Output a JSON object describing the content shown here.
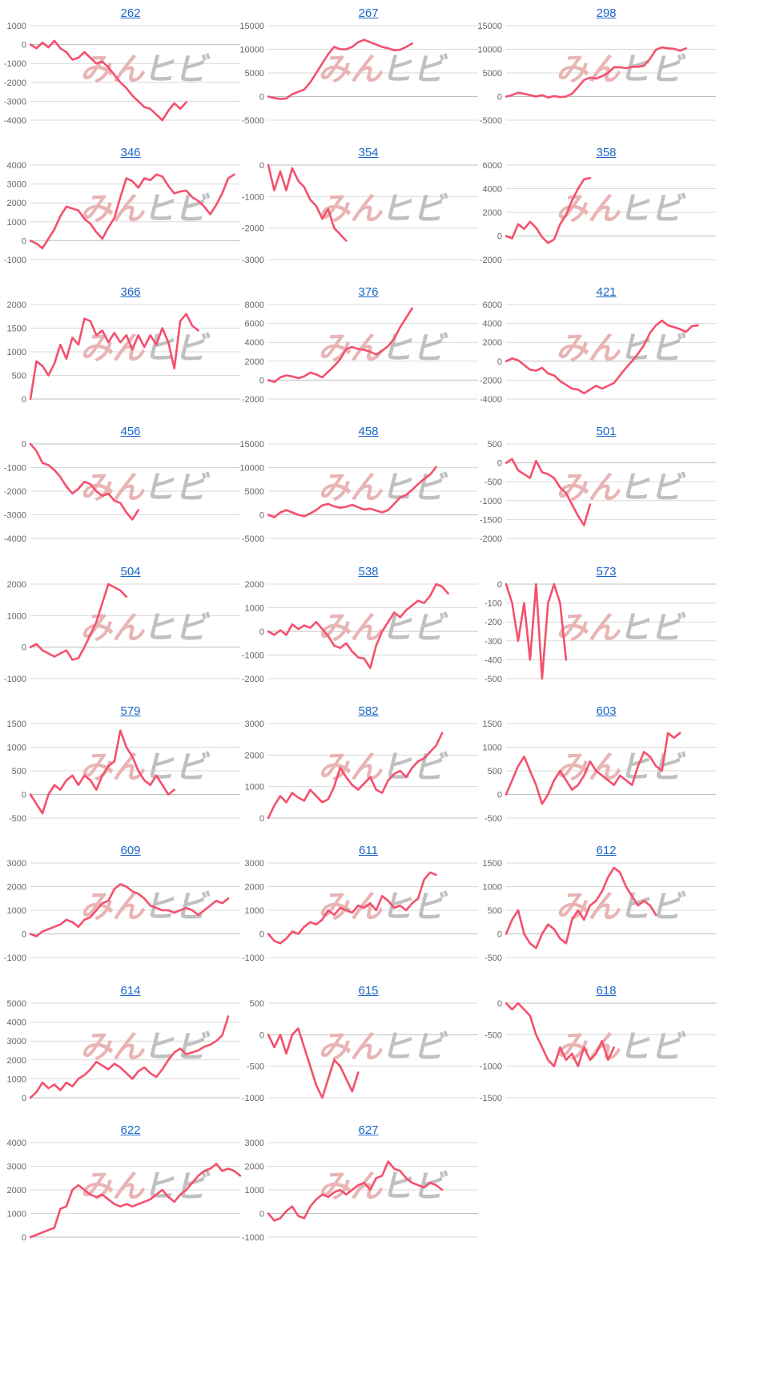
{
  "page": {
    "background": "#ffffff"
  },
  "style": {
    "line_color": "#f4506d",
    "link_color": "#1a66c8",
    "grid_color": "#d9d9d9",
    "axis_color": "#bfbfbf",
    "tick_color": "#666666"
  },
  "watermark": {
    "text_left": "みん",
    "text_right": "ヒビ",
    "color_left": "#e8b0b0",
    "color_right": "#bdbdbd"
  },
  "chart_data": [
    {
      "type": "line",
      "title": "262",
      "ylim": [
        -4000,
        1000
      ],
      "yticks": [
        "1000",
        "0",
        "-1000",
        "-2000",
        "-3000",
        "-4000"
      ],
      "values": [
        0,
        -200,
        100,
        -150,
        200,
        -200,
        -400,
        -800,
        -700,
        -400,
        -700,
        -1000,
        -900,
        -1200,
        -1600,
        -2000,
        -2300,
        -2700,
        -3000,
        -3300,
        -3400,
        -3700,
        -4000,
        -3500,
        -3100,
        -3400,
        -3050
      ]
    },
    {
      "type": "line",
      "title": "267",
      "ylim": [
        -5000,
        15000
      ],
      "yticks": [
        "15000",
        "10000",
        "5000",
        "0",
        "-5000"
      ],
      "values": [
        0,
        -300,
        -500,
        -400,
        500,
        1000,
        1500,
        3000,
        5000,
        7000,
        9000,
        10500,
        10000,
        10000,
        10500,
        11500,
        12000,
        11500,
        11000,
        10500,
        10200,
        9800,
        9900,
        10500,
        11200
      ]
    },
    {
      "type": "line",
      "title": "298",
      "ylim": [
        -5000,
        15000
      ],
      "yticks": [
        "15000",
        "10000",
        "5000",
        "0",
        "-5000"
      ],
      "values": [
        0,
        300,
        800,
        600,
        300,
        0,
        300,
        -200,
        100,
        -100,
        0,
        600,
        2000,
        3500,
        4000,
        3800,
        4300,
        5000,
        6200,
        6200,
        6000,
        6300,
        6300,
        6500,
        8000,
        9900,
        10400,
        10200,
        10100,
        9700,
        10200
      ]
    },
    {
      "type": "line",
      "title": "346",
      "ylim": [
        -1000,
        4000
      ],
      "yticks": [
        "4000",
        "3000",
        "2000",
        "1000",
        "0",
        "-1000"
      ],
      "values": [
        0,
        -150,
        -400,
        100,
        600,
        1300,
        1800,
        1700,
        1600,
        1150,
        900,
        450,
        100,
        700,
        1200,
        2300,
        3300,
        3150,
        2800,
        3300,
        3200,
        3500,
        3400,
        2900,
        2500,
        2600,
        2650,
        2300,
        2100,
        1800,
        1400,
        1900,
        2500,
        3300,
        3500
      ]
    },
    {
      "type": "line",
      "title": "354",
      "ylim": [
        -3000,
        0
      ],
      "yticks": [
        "0",
        "-1000",
        "-2000",
        "-3000"
      ],
      "values": [
        0,
        -800,
        -200,
        -800,
        -100,
        -500,
        -700,
        -1100,
        -1300,
        -1700,
        -1400,
        -2000,
        -2200,
        -2400
      ]
    },
    {
      "type": "line",
      "title": "358",
      "ylim": [
        -2000,
        6000
      ],
      "yticks": [
        "6000",
        "4000",
        "2000",
        "0",
        "-2000"
      ],
      "values": [
        0,
        -200,
        1000,
        600,
        1200,
        700,
        -100,
        -600,
        -300,
        1000,
        1800,
        3000,
        4000,
        4800,
        4900
      ]
    },
    {
      "type": "line",
      "title": "366",
      "ylim": [
        0,
        2000
      ],
      "yticks": [
        "2000",
        "1500",
        "1000",
        "500",
        "0"
      ],
      "values": [
        0,
        800,
        700,
        500,
        750,
        1150,
        850,
        1300,
        1150,
        1700,
        1650,
        1350,
        1450,
        1200,
        1400,
        1200,
        1350,
        1050,
        1350,
        1100,
        1350,
        1150,
        1500,
        1200,
        650,
        1650,
        1800,
        1550,
        1450
      ]
    },
    {
      "type": "line",
      "title": "376",
      "ylim": [
        -2000,
        8000
      ],
      "yticks": [
        "8000",
        "6000",
        "4000",
        "2000",
        "0",
        "-2000"
      ],
      "values": [
        0,
        -200,
        300,
        500,
        400,
        200,
        400,
        800,
        600,
        300,
        900,
        1500,
        2200,
        3300,
        3500,
        3300,
        3200,
        3000,
        2700,
        3100,
        3600,
        4400,
        5600,
        6600,
        7600
      ]
    },
    {
      "type": "line",
      "title": "421",
      "ylim": [
        -4000,
        6000
      ],
      "yticks": [
        "6000",
        "4000",
        "2000",
        "0",
        "-2000",
        "-4000"
      ],
      "values": [
        0,
        300,
        100,
        -400,
        -900,
        -1000,
        -700,
        -1300,
        -1500,
        -2100,
        -2500,
        -2900,
        -3000,
        -3400,
        -3000,
        -2600,
        -2900,
        -2600,
        -2300,
        -1500,
        -700,
        0,
        800,
        1700,
        3000,
        3800,
        4300,
        3800,
        3600,
        3400,
        3100,
        3700,
        3800
      ]
    },
    {
      "type": "line",
      "title": "456",
      "ylim": [
        -4000,
        0
      ],
      "yticks": [
        "0",
        "-1000",
        "-2000",
        "-3000",
        "-4000"
      ],
      "values": [
        0,
        -300,
        -800,
        -900,
        -1100,
        -1400,
        -1800,
        -2100,
        -1900,
        -1600,
        -1700,
        -2000,
        -2200,
        -2100,
        -2400,
        -2500,
        -2900,
        -3200,
        -2800
      ]
    },
    {
      "type": "line",
      "title": "458",
      "ylim": [
        -5000,
        15000
      ],
      "yticks": [
        "15000",
        "10000",
        "5000",
        "0",
        "-5000"
      ],
      "values": [
        0,
        -500,
        500,
        1000,
        500,
        0,
        -300,
        300,
        1000,
        2000,
        2300,
        1800,
        1500,
        1700,
        2100,
        1600,
        1100,
        1300,
        900,
        500,
        1000,
        2300,
        3700,
        4200,
        5300,
        6500,
        7600,
        8500,
        10100
      ]
    },
    {
      "type": "line",
      "title": "501",
      "ylim": [
        -2000,
        500
      ],
      "yticks": [
        "500",
        "0",
        "-500",
        "-1000",
        "-1500",
        "-2000"
      ],
      "values": [
        0,
        100,
        -200,
        -300,
        -400,
        50,
        -250,
        -300,
        -400,
        -650,
        -800,
        -1100,
        -1400,
        -1650,
        -1100
      ]
    },
    {
      "type": "line",
      "title": "504",
      "ylim": [
        -1000,
        2000
      ],
      "yticks": [
        "2000",
        "1000",
        "0",
        "-1000"
      ],
      "values": [
        0,
        100,
        -100,
        -200,
        -300,
        -200,
        -100,
        -400,
        -350,
        0,
        400,
        800,
        1400,
        2000,
        1900,
        1800,
        1600
      ]
    },
    {
      "type": "line",
      "title": "538",
      "ylim": [
        -2000,
        2000
      ],
      "yticks": [
        "2000",
        "1000",
        "0",
        "-1000",
        "-2000"
      ],
      "values": [
        0,
        -150,
        50,
        -150,
        300,
        100,
        250,
        150,
        400,
        100,
        -200,
        -600,
        -700,
        -500,
        -850,
        -1100,
        -1150,
        -1550,
        -600,
        0,
        400,
        800,
        600,
        900,
        1100,
        1300,
        1200,
        1500,
        2000,
        1900,
        1600
      ]
    },
    {
      "type": "line",
      "title": "573",
      "ylim": [
        -500,
        0
      ],
      "yticks": [
        "0",
        "-100",
        "-200",
        "-300",
        "-400",
        "-500"
      ],
      "values": [
        0,
        -100,
        -300,
        -100,
        -400,
        0,
        -500,
        -100,
        0,
        -100,
        -400
      ]
    },
    {
      "type": "line",
      "title": "579",
      "ylim": [
        -500,
        1500
      ],
      "yticks": [
        "1500",
        "1000",
        "500",
        "0",
        "-500"
      ],
      "values": [
        0,
        -200,
        -400,
        0,
        200,
        100,
        300,
        400,
        200,
        400,
        300,
        100,
        400,
        600,
        700,
        1350,
        1000,
        800,
        500,
        300,
        200,
        400,
        200,
        0,
        100
      ]
    },
    {
      "type": "line",
      "title": "582",
      "ylim": [
        0,
        3000
      ],
      "yticks": [
        "3000",
        "2000",
        "1000",
        "0"
      ],
      "values": [
        0,
        400,
        700,
        500,
        800,
        650,
        550,
        900,
        700,
        500,
        600,
        1000,
        1600,
        1300,
        1050,
        900,
        1100,
        1300,
        900,
        800,
        1200,
        1400,
        1500,
        1300,
        1600,
        1800,
        1900,
        2100,
        2300,
        2700
      ]
    },
    {
      "type": "line",
      "title": "603",
      "ylim": [
        -500,
        1500
      ],
      "yticks": [
        "1500",
        "1000",
        "500",
        "0",
        "-500"
      ],
      "values": [
        0,
        300,
        600,
        800,
        500,
        200,
        -200,
        0,
        300,
        500,
        300,
        100,
        200,
        400,
        700,
        500,
        400,
        300,
        200,
        400,
        300,
        200,
        600,
        900,
        800,
        600,
        500,
        1300,
        1200,
        1300
      ]
    },
    {
      "type": "line",
      "title": "609",
      "ylim": [
        -1000,
        3000
      ],
      "yticks": [
        "3000",
        "2000",
        "1000",
        "0",
        "-1000"
      ],
      "values": [
        0,
        -100,
        100,
        200,
        300,
        400,
        600,
        500,
        300,
        600,
        700,
        1000,
        1300,
        1400,
        1900,
        2100,
        2000,
        1800,
        1700,
        1500,
        1200,
        1100,
        1000,
        1000,
        900,
        1000,
        1100,
        1000,
        800,
        1000,
        1200,
        1400,
        1300,
        1500
      ]
    },
    {
      "type": "line",
      "title": "611",
      "ylim": [
        -1000,
        3000
      ],
      "yticks": [
        "3000",
        "2000",
        "1000",
        "0",
        "-1000"
      ],
      "values": [
        0,
        -300,
        -400,
        -200,
        100,
        0,
        300,
        500,
        400,
        600,
        1000,
        800,
        1100,
        1000,
        900,
        1200,
        1100,
        1300,
        1000,
        1600,
        1400,
        1100,
        1200,
        1000,
        1300,
        1500,
        2300,
        2600,
        2500
      ]
    },
    {
      "type": "line",
      "title": "612",
      "ylim": [
        -500,
        1500
      ],
      "yticks": [
        "1500",
        "1000",
        "500",
        "0",
        "-500"
      ],
      "values": [
        0,
        300,
        500,
        0,
        -200,
        -300,
        0,
        200,
        100,
        -100,
        -200,
        300,
        500,
        300,
        600,
        700,
        900,
        1200,
        1400,
        1300,
        1000,
        800,
        600,
        700,
        600,
        400
      ]
    },
    {
      "type": "line",
      "title": "614",
      "ylim": [
        0,
        5000
      ],
      "yticks": [
        "5000",
        "4000",
        "3000",
        "2000",
        "1000",
        "0"
      ],
      "values": [
        0,
        300,
        800,
        500,
        700,
        400,
        800,
        600,
        1000,
        1200,
        1500,
        1900,
        1700,
        1500,
        1800,
        1600,
        1300,
        1000,
        1400,
        1600,
        1300,
        1100,
        1500,
        2000,
        2400,
        2600,
        2300,
        2400,
        2500,
        2700,
        2800,
        3000,
        3300,
        4300
      ]
    },
    {
      "type": "line",
      "title": "615",
      "ylim": [
        -1000,
        500
      ],
      "yticks": [
        "500",
        "0",
        "-500",
        "-1000"
      ],
      "values": [
        0,
        -200,
        0,
        -300,
        0,
        100,
        -200,
        -500,
        -800,
        -1000,
        -700,
        -400,
        -500,
        -700,
        -900,
        -600
      ]
    },
    {
      "type": "line",
      "title": "618",
      "ylim": [
        -1500,
        0
      ],
      "yticks": [
        "0",
        "-500",
        "-1000",
        "-1500"
      ],
      "values": [
        0,
        -100,
        0,
        -100,
        -200,
        -500,
        -700,
        -900,
        -1000,
        -700,
        -900,
        -800,
        -1000,
        -700,
        -900,
        -800,
        -600,
        -900,
        -700
      ]
    },
    {
      "type": "line",
      "title": "622",
      "ylim": [
        0,
        4000
      ],
      "yticks": [
        "4000",
        "3000",
        "2000",
        "1000",
        "0"
      ],
      "values": [
        0,
        100,
        200,
        300,
        400,
        1200,
        1300,
        2000,
        2200,
        2000,
        1800,
        1700,
        1800,
        1600,
        1400,
        1300,
        1400,
        1300,
        1400,
        1500,
        1600,
        1800,
        2000,
        1700,
        1500,
        1800,
        2000,
        2300,
        2600,
        2800,
        2900,
        3100,
        2800,
        2900,
        2800,
        2600
      ]
    },
    {
      "type": "line",
      "title": "627",
      "ylim": [
        -1000,
        3000
      ],
      "yticks": [
        "3000",
        "2000",
        "1000",
        "0",
        "-1000"
      ],
      "values": [
        0,
        -300,
        -200,
        100,
        300,
        -100,
        -200,
        300,
        600,
        800,
        700,
        900,
        1000,
        800,
        1000,
        1200,
        1300,
        1000,
        1500,
        1600,
        2200,
        1900,
        1800,
        1500,
        1300,
        1200,
        1100,
        1300,
        1200,
        1000
      ]
    }
  ]
}
